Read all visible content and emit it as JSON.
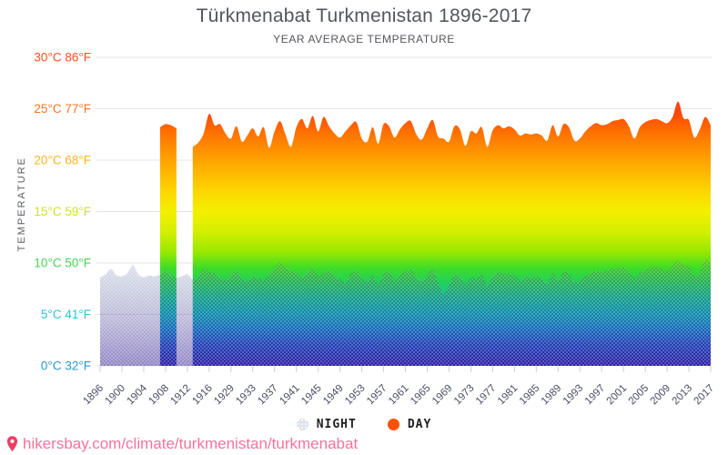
{
  "title": "Türkmenabat Turkmenistan 1896-2017",
  "subtitle": "YEAR AVERAGE TEMPERATURE",
  "y_axis": {
    "title": "TEMPERATURE",
    "labels": [
      {
        "text": "30°C 86°F",
        "temp": 30,
        "color": "#ff4d21"
      },
      {
        "text": "25°C 77°F",
        "temp": 25,
        "color": "#ff7321"
      },
      {
        "text": "20°C 68°F",
        "temp": 20,
        "color": "#ffb421"
      },
      {
        "text": "15°C 59°F",
        "temp": 15,
        "color": "#cfe32a"
      },
      {
        "text": "10°C 50°F",
        "temp": 10,
        "color": "#45d653"
      },
      {
        "text": "5°C 41°F",
        "temp": 5,
        "color": "#2cc6d3"
      },
      {
        "text": "0°C 32°F",
        "temp": 0,
        "color": "#2b9ad6"
      }
    ]
  },
  "legend": {
    "items": [
      {
        "label": "NIGHT",
        "marker_color": "#dfe3ea"
      },
      {
        "label": "DAY",
        "marker_color": "#ff5206"
      }
    ]
  },
  "footer": {
    "link": "hikersbay.com/climate/turkmenistan/turkmenabat",
    "text_color": "#f9729c",
    "pin_color": "#ee3e63"
  },
  "chart_data": {
    "type": "area",
    "title": "Türkmenabat Turkmenistan 1896-2017",
    "subtitle": "YEAR AVERAGE TEMPERATURE",
    "ylabel": "TEMPERATURE",
    "ylim": [
      0,
      30
    ],
    "y_tick_step": 5,
    "grid": true,
    "legend_position": "bottom",
    "note": "Years 1917-1925 are absent from the axis; DAY values missing 1896-1906 and 1911-1912 (NIGHT only shown there)",
    "x": [
      1896,
      1897,
      1898,
      1899,
      1900,
      1901,
      1902,
      1903,
      1904,
      1905,
      1906,
      1907,
      1908,
      1909,
      1910,
      1911,
      1912,
      1913,
      1914,
      1915,
      1916,
      1926,
      1927,
      1928,
      1929,
      1930,
      1931,
      1932,
      1933,
      1934,
      1935,
      1936,
      1937,
      1938,
      1939,
      1940,
      1941,
      1942,
      1943,
      1944,
      1945,
      1946,
      1947,
      1948,
      1949,
      1950,
      1951,
      1952,
      1953,
      1954,
      1955,
      1956,
      1957,
      1958,
      1959,
      1960,
      1961,
      1962,
      1963,
      1964,
      1965,
      1966,
      1967,
      1968,
      1969,
      1970,
      1971,
      1972,
      1973,
      1974,
      1975,
      1976,
      1977,
      1978,
      1979,
      1980,
      1981,
      1982,
      1983,
      1984,
      1985,
      1986,
      1987,
      1988,
      1989,
      1990,
      1991,
      1992,
      1993,
      1994,
      1995,
      1996,
      1997,
      1998,
      1999,
      2000,
      2001,
      2002,
      2003,
      2004,
      2005,
      2006,
      2007,
      2008,
      2009,
      2010,
      2011,
      2012,
      2013,
      2014,
      2015,
      2016,
      2017
    ],
    "x_tick_labels": [
      "1896",
      "1900",
      "1904",
      "1908",
      "1912",
      "1916",
      "1929",
      "1933",
      "1937",
      "1941",
      "1945",
      "1949",
      "1953",
      "1957",
      "1961",
      "1965",
      "1969",
      "1973",
      "1977",
      "1981",
      "1985",
      "1989",
      "1993",
      "1997",
      "2001",
      "2005",
      "2009",
      "2013",
      "2017"
    ],
    "x_tick_every": 4,
    "series": [
      {
        "name": "NIGHT",
        "values": [
          8.6,
          8.9,
          9.4,
          8.8,
          8.7,
          9.0,
          9.8,
          8.9,
          8.6,
          8.8,
          8.7,
          8.9,
          9.3,
          8.8,
          8.6,
          8.7,
          8.9,
          8.4,
          8.7,
          9.4,
          9.1,
          9.0,
          8.6,
          8.3,
          8.8,
          9.2,
          8.5,
          8.2,
          8.7,
          8.5,
          8.3,
          8.8,
          9.5,
          10.0,
          9.6,
          9.2,
          9.0,
          8.6,
          9.1,
          9.4,
          8.8,
          9.0,
          9.3,
          8.7,
          8.4,
          8.1,
          8.9,
          9.2,
          8.5,
          8.2,
          8.8,
          7.9,
          8.9,
          9.1,
          8.4,
          8.8,
          9.2,
          9.4,
          8.6,
          8.2,
          8.8,
          9.3,
          8.1,
          7.0,
          7.8,
          8.9,
          8.7,
          7.9,
          8.6,
          8.4,
          8.9,
          7.8,
          8.7,
          9.1,
          8.9,
          9.0,
          8.8,
          8.3,
          8.6,
          8.5,
          8.7,
          8.4,
          8.0,
          9.0,
          8.3,
          9.1,
          8.9,
          8.1,
          8.3,
          8.7,
          9.0,
          9.2,
          9.1,
          9.3,
          9.5,
          9.4,
          9.6,
          9.1,
          8.5,
          9.0,
          9.3,
          9.5,
          9.6,
          9.4,
          9.2,
          9.7,
          10.2,
          9.8,
          9.6,
          8.7,
          9.1,
          10.3,
          9.9
        ]
      },
      {
        "name": "DAY",
        "values": [
          null,
          null,
          null,
          null,
          null,
          null,
          null,
          null,
          null,
          null,
          null,
          23.2,
          23.5,
          23.4,
          23.1,
          null,
          null,
          21.3,
          21.7,
          22.6,
          24.5,
          23.4,
          23.5,
          22.6,
          22.1,
          23.3,
          21.8,
          22.4,
          23.1,
          22.3,
          23.2,
          21.2,
          22.8,
          23.8,
          22.5,
          21.3,
          23.2,
          24.0,
          23.1,
          24.3,
          22.8,
          24.2,
          23.3,
          22.6,
          22.2,
          22.8,
          23.4,
          23.7,
          22.1,
          21.8,
          23.2,
          21.6,
          23.5,
          23.3,
          22.2,
          23.0,
          23.6,
          23.8,
          22.5,
          22.0,
          23.1,
          23.9,
          22.3,
          22.1,
          21.8,
          23.3,
          23.0,
          21.4,
          22.8,
          22.6,
          23.2,
          21.3,
          22.9,
          23.4,
          23.1,
          23.3,
          23.0,
          22.4,
          22.6,
          22.5,
          22.6,
          22.4,
          21.9,
          23.4,
          22.3,
          23.5,
          23.2,
          21.9,
          22.1,
          22.8,
          23.3,
          23.6,
          23.4,
          23.5,
          23.8,
          23.9,
          24.0,
          23.3,
          22.1,
          23.2,
          23.7,
          23.9,
          24.0,
          23.8,
          23.6,
          24.2,
          25.7,
          24.1,
          23.9,
          22.2,
          23.0,
          24.2,
          23.4
        ]
      }
    ],
    "colors": {
      "day_gradient": [
        [
          30,
          "#e8234e"
        ],
        [
          27,
          "#f0303a"
        ],
        [
          24.5,
          "#ff4906"
        ],
        [
          23,
          "#ff6a00"
        ],
        [
          21,
          "#ff9100"
        ],
        [
          19,
          "#ffb400"
        ],
        [
          17,
          "#fdd600"
        ],
        [
          15,
          "#f4ef00"
        ],
        [
          13,
          "#d3ef00"
        ],
        [
          11,
          "#96e800"
        ],
        [
          9.5,
          "#3edc28"
        ],
        [
          8,
          "#21cf60"
        ],
        [
          6.5,
          "#10c49e"
        ],
        [
          5,
          "#0ab9c6"
        ],
        [
          3.5,
          "#1795dd"
        ],
        [
          2,
          "#2f63e0"
        ],
        [
          0,
          "#4a3cd2"
        ]
      ],
      "night_gradient": [
        [
          0,
          "#e3e7f1"
        ],
        [
          30,
          "#ccd1e1"
        ],
        [
          60,
          "#b9b6d8"
        ],
        [
          100,
          "#9186c5"
        ]
      ],
      "gridline": "#e4e4e4",
      "tick": "#c9cede",
      "x_label": "#474c60"
    }
  }
}
